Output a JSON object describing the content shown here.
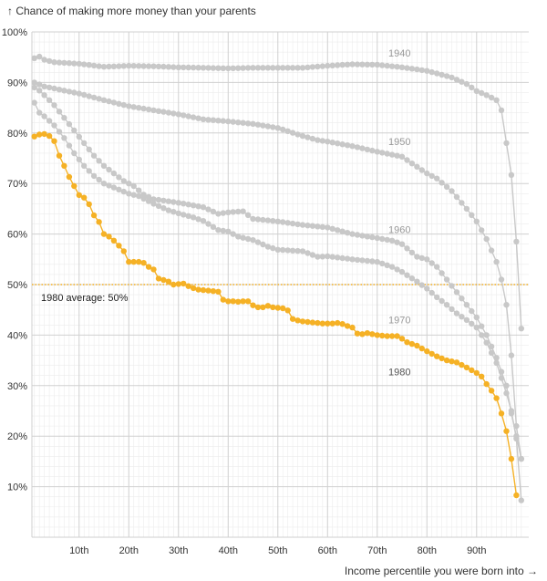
{
  "chart_data": {
    "type": "line",
    "title": "↑ Chance of making more money than your parents",
    "xlabel": "Income percentile you were born into →",
    "ylabel": "",
    "xlim": [
      1,
      100
    ],
    "ylim": [
      0,
      100
    ],
    "x_ticks": [
      10,
      20,
      30,
      40,
      50,
      60,
      70,
      80,
      90
    ],
    "x_tick_labels": [
      "10th",
      "20th",
      "30th",
      "40th",
      "50th",
      "60th",
      "70th",
      "80th",
      "90th"
    ],
    "y_ticks": [
      10,
      20,
      30,
      40,
      50,
      60,
      70,
      80,
      90,
      100
    ],
    "y_tick_labels": [
      "10%",
      "20%",
      "30%",
      "40%",
      "50%",
      "60%",
      "70%",
      "80%",
      "90%",
      "100%"
    ],
    "grid": true,
    "series": [
      {
        "name": "1940",
        "color": "#c8c8c8",
        "label_color": "#999999",
        "anchors": [
          [
            1,
            94.8
          ],
          [
            2,
            95.1
          ],
          [
            3,
            94.5
          ],
          [
            5,
            94.0
          ],
          [
            10,
            93.7
          ],
          [
            15,
            93.1
          ],
          [
            20,
            93.3
          ],
          [
            25,
            93.2
          ],
          [
            30,
            93.0
          ],
          [
            35,
            92.9
          ],
          [
            40,
            92.8
          ],
          [
            45,
            92.9
          ],
          [
            50,
            92.9
          ],
          [
            55,
            92.9
          ],
          [
            60,
            93.3
          ],
          [
            65,
            93.6
          ],
          [
            70,
            93.5
          ],
          [
            75,
            93.0
          ],
          [
            80,
            92.3
          ],
          [
            85,
            91.0
          ],
          [
            88,
            89.7
          ],
          [
            90,
            88.3
          ],
          [
            92,
            87.5
          ],
          [
            94,
            86.5
          ],
          [
            95,
            84.5
          ],
          [
            96,
            78.0
          ],
          [
            97,
            71.7
          ],
          [
            98,
            58.5
          ],
          [
            99,
            41.3
          ]
        ]
      },
      {
        "name": "1950",
        "color": "#c8c8c8",
        "label_color": "#999999",
        "anchors": [
          [
            1,
            90.0
          ],
          [
            3,
            89.2
          ],
          [
            5,
            88.8
          ],
          [
            10,
            87.8
          ],
          [
            15,
            86.5
          ],
          [
            20,
            85.3
          ],
          [
            25,
            84.5
          ],
          [
            30,
            83.7
          ],
          [
            35,
            82.7
          ],
          [
            40,
            82.3
          ],
          [
            45,
            81.8
          ],
          [
            50,
            81.0
          ],
          [
            55,
            79.4
          ],
          [
            58,
            78.6
          ],
          [
            60,
            78.3
          ],
          [
            65,
            77.4
          ],
          [
            70,
            76.3
          ],
          [
            75,
            75.3
          ],
          [
            80,
            72.0
          ],
          [
            82,
            71.0
          ],
          [
            85,
            68.5
          ],
          [
            88,
            65.0
          ],
          [
            90,
            62.5
          ],
          [
            92,
            59.0
          ],
          [
            94,
            54.5
          ],
          [
            95,
            51.0
          ],
          [
            96,
            46.0
          ],
          [
            97,
            36.0
          ],
          [
            98,
            22.0
          ],
          [
            99,
            15.5
          ]
        ]
      },
      {
        "name": "1960",
        "color": "#c8c8c8",
        "label_color": "#999999",
        "anchors": [
          [
            1,
            89.0
          ],
          [
            2,
            88.4
          ],
          [
            3,
            87.5
          ],
          [
            5,
            85.5
          ],
          [
            7,
            83.0
          ],
          [
            9,
            80.5
          ],
          [
            11,
            78.0
          ],
          [
            13,
            75.5
          ],
          [
            15,
            73.5
          ],
          [
            17,
            72.0
          ],
          [
            19,
            70.5
          ],
          [
            21,
            69.5
          ],
          [
            23,
            67.8
          ],
          [
            25,
            66.9
          ],
          [
            30,
            66.2
          ],
          [
            35,
            65.3
          ],
          [
            38,
            64.0
          ],
          [
            40,
            64.3
          ],
          [
            43,
            64.5
          ],
          [
            45,
            63.0
          ],
          [
            50,
            62.5
          ],
          [
            55,
            61.8
          ],
          [
            60,
            61.3
          ],
          [
            65,
            60.0
          ],
          [
            70,
            59.2
          ],
          [
            73,
            58.7
          ],
          [
            75,
            58.0
          ],
          [
            78,
            55.5
          ],
          [
            80,
            55.0
          ],
          [
            82,
            53.5
          ],
          [
            84,
            51.0
          ],
          [
            86,
            48.5
          ],
          [
            88,
            46.0
          ],
          [
            90,
            43.5
          ],
          [
            92,
            40.0
          ],
          [
            94,
            35.5
          ],
          [
            96,
            30.0
          ],
          [
            97,
            24.5
          ],
          [
            98,
            20.0
          ],
          [
            99,
            15.5
          ]
        ]
      },
      {
        "name": "1970",
        "color": "#c8c8c8",
        "label_color": "#999999",
        "anchors": [
          [
            1,
            86.0
          ],
          [
            2,
            84.0
          ],
          [
            3,
            83.3
          ],
          [
            5,
            81.5
          ],
          [
            7,
            79.0
          ],
          [
            9,
            76.0
          ],
          [
            11,
            73.5
          ],
          [
            13,
            71.5
          ],
          [
            15,
            70.0
          ],
          [
            18,
            68.8
          ],
          [
            20,
            68.0
          ],
          [
            22,
            67.5
          ],
          [
            25,
            66.0
          ],
          [
            28,
            64.7
          ],
          [
            30,
            64.1
          ],
          [
            33,
            63.3
          ],
          [
            35,
            62.6
          ],
          [
            38,
            60.8
          ],
          [
            40,
            60.5
          ],
          [
            42,
            59.5
          ],
          [
            45,
            58.8
          ],
          [
            48,
            57.5
          ],
          [
            50,
            56.9
          ],
          [
            55,
            56.6
          ],
          [
            58,
            55.5
          ],
          [
            60,
            55.6
          ],
          [
            65,
            55.0
          ],
          [
            70,
            54.5
          ],
          [
            73,
            53.5
          ],
          [
            75,
            52.5
          ],
          [
            78,
            50.6
          ],
          [
            80,
            49.2
          ],
          [
            82,
            47.5
          ],
          [
            84,
            46.0
          ],
          [
            86,
            44.3
          ],
          [
            88,
            43.0
          ],
          [
            90,
            41.5
          ],
          [
            92,
            38.5
          ],
          [
            94,
            34.5
          ],
          [
            96,
            28.5
          ],
          [
            97,
            25.0
          ],
          [
            98,
            19.5
          ],
          [
            99,
            7.3
          ]
        ]
      },
      {
        "name": "1980",
        "color": "#f5b125",
        "label_color": "#555555",
        "anchors": [
          [
            1,
            79.3
          ],
          [
            2,
            79.7
          ],
          [
            3,
            79.8
          ],
          [
            4,
            79.4
          ],
          [
            5,
            78.4
          ],
          [
            6,
            75.5
          ],
          [
            7,
            73.5
          ],
          [
            8,
            71.3
          ],
          [
            9,
            69.5
          ],
          [
            10,
            67.7
          ],
          [
            11,
            67.2
          ],
          [
            12,
            65.9
          ],
          [
            13,
            63.7
          ],
          [
            14,
            62.4
          ],
          [
            15,
            60.0
          ],
          [
            16,
            59.5
          ],
          [
            17,
            58.7
          ],
          [
            18,
            57.7
          ],
          [
            19,
            56.6
          ],
          [
            20,
            54.5
          ],
          [
            21,
            54.5
          ],
          [
            22,
            54.5
          ],
          [
            23,
            54.3
          ],
          [
            24,
            53.5
          ],
          [
            25,
            53.0
          ],
          [
            26,
            51.2
          ],
          [
            27,
            50.9
          ],
          [
            28,
            50.6
          ],
          [
            29,
            50.0
          ],
          [
            30,
            50.1
          ],
          [
            31,
            50.2
          ],
          [
            32,
            49.7
          ],
          [
            33,
            49.3
          ],
          [
            34,
            49.0
          ],
          [
            35,
            48.9
          ],
          [
            36,
            48.8
          ],
          [
            37,
            48.7
          ],
          [
            38,
            48.6
          ],
          [
            39,
            47.0
          ],
          [
            40,
            46.7
          ],
          [
            41,
            46.7
          ],
          [
            42,
            46.6
          ],
          [
            43,
            46.7
          ],
          [
            44,
            46.7
          ],
          [
            45,
            45.9
          ],
          [
            46,
            45.5
          ],
          [
            47,
            45.5
          ],
          [
            48,
            45.8
          ],
          [
            49,
            45.5
          ],
          [
            50,
            45.4
          ],
          [
            51,
            45.3
          ],
          [
            52,
            44.9
          ],
          [
            53,
            43.2
          ],
          [
            54,
            42.9
          ],
          [
            55,
            42.7
          ],
          [
            56,
            42.6
          ],
          [
            57,
            42.5
          ],
          [
            58,
            42.4
          ],
          [
            59,
            42.3
          ],
          [
            60,
            42.3
          ],
          [
            61,
            42.3
          ],
          [
            62,
            42.4
          ],
          [
            63,
            42.2
          ],
          [
            64,
            41.8
          ],
          [
            65,
            41.5
          ],
          [
            66,
            40.3
          ],
          [
            67,
            40.2
          ],
          [
            68,
            40.4
          ],
          [
            69,
            40.2
          ],
          [
            70,
            40.0
          ],
          [
            72,
            39.8
          ],
          [
            74,
            39.8
          ],
          [
            75,
            39.3
          ],
          [
            76,
            38.6
          ],
          [
            78,
            37.9
          ],
          [
            80,
            36.8
          ],
          [
            82,
            35.8
          ],
          [
            84,
            35.0
          ],
          [
            86,
            34.6
          ],
          [
            88,
            33.6
          ],
          [
            90,
            32.5
          ],
          [
            91,
            31.8
          ],
          [
            92,
            30.3
          ],
          [
            93,
            29.0
          ],
          [
            94,
            27.5
          ],
          [
            95,
            24.5
          ],
          [
            96,
            21.0
          ],
          [
            97,
            15.5
          ],
          [
            98,
            8.3
          ]
        ]
      }
    ],
    "reference_line": {
      "y": 50,
      "label": "1980 average: 50%",
      "color": "#f5b125"
    },
    "series_labels": [
      {
        "name": "1940",
        "x": 74.5,
        "y": 95.1
      },
      {
        "name": "1950",
        "x": 74.5,
        "y": 77.6
      },
      {
        "name": "1960",
        "x": 74.5,
        "y": 60.2
      },
      {
        "name": "1970",
        "x": 74.5,
        "y": 42.3
      },
      {
        "name": "1980",
        "x": 74.5,
        "y": 32.0
      }
    ]
  }
}
